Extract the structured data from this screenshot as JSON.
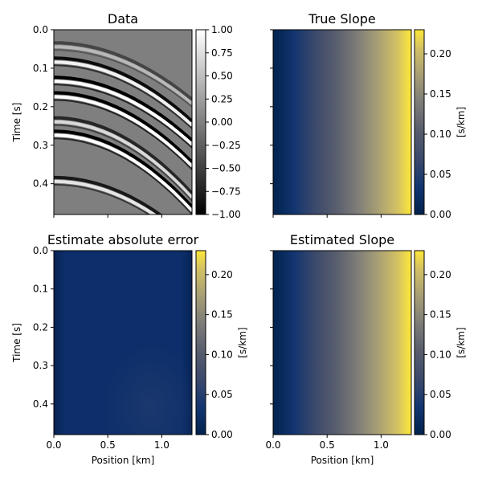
{
  "chart_data": [
    {
      "type": "heatmap",
      "title": "Data",
      "xlabel": "",
      "ylabel": "Time [s]",
      "xlim": [
        0.0,
        1.28
      ],
      "ylim": [
        0.0,
        0.48
      ],
      "y_inverted": true,
      "xticks": [
        0.0,
        0.5,
        1.0
      ],
      "yticks": [
        0.0,
        0.1,
        0.2,
        0.3,
        0.4
      ],
      "ytick_labels": [
        "0.0",
        "0.1",
        "0.2",
        "0.3",
        "0.4"
      ],
      "colormap": "gray",
      "colorbar": {
        "label": "",
        "vmin": -1.0,
        "vmax": 1.0,
        "ticks": [
          1.0,
          0.75,
          0.5,
          0.25,
          0.0,
          -0.25,
          -0.5,
          -0.75,
          -1.0
        ],
        "tick_labels": [
          "1.00",
          "0.75",
          "0.50",
          "0.25",
          "0.00",
          "−0.25",
          "−0.50",
          "−0.75",
          "−1.00"
        ]
      },
      "events": [
        {
          "t0": 0.04,
          "curvature": 0.09,
          "amplitude": 0.45
        },
        {
          "t0": 0.08,
          "curvature": 0.1,
          "amplitude": 0.9
        },
        {
          "t0": 0.13,
          "curvature": 0.1,
          "amplitude": 1.0
        },
        {
          "t0": 0.17,
          "curvature": 0.11,
          "amplitude": 1.0
        },
        {
          "t0": 0.235,
          "curvature": 0.12,
          "amplitude": 0.7
        },
        {
          "t0": 0.27,
          "curvature": 0.12,
          "amplitude": 1.0
        },
        {
          "t0": 0.39,
          "curvature": 0.1,
          "amplitude": 0.8
        }
      ]
    },
    {
      "type": "heatmap",
      "title": "True Slope",
      "xlabel": "",
      "ylabel": "",
      "xlim": [
        0.0,
        1.28
      ],
      "ylim": [
        0.0,
        0.48
      ],
      "y_inverted": true,
      "colormap": "cividis",
      "field": "linear_in_position",
      "value_range": [
        0.0,
        0.23
      ],
      "colorbar": {
        "label": "[s/km]",
        "vmin": 0.0,
        "vmax": 0.23,
        "ticks": [
          0.2,
          0.15,
          0.1,
          0.05,
          0.0
        ],
        "tick_labels": [
          "0.20",
          "0.15",
          "0.10",
          "0.05",
          "0.00"
        ]
      }
    },
    {
      "type": "heatmap",
      "title": "Estimate absolute error",
      "xlabel": "Position [km]",
      "ylabel": "Time [s]",
      "xlim": [
        0.0,
        1.28
      ],
      "ylim": [
        0.0,
        0.48
      ],
      "y_inverted": true,
      "xticks": [
        0.0,
        0.5,
        1.0
      ],
      "xtick_labels": [
        "0.0",
        "0.5",
        "1.0"
      ],
      "yticks": [
        0.0,
        0.1,
        0.2,
        0.3,
        0.4
      ],
      "ytick_labels": [
        "0.0",
        "0.1",
        "0.2",
        "0.3",
        "0.4"
      ],
      "colormap": "cividis",
      "field": "near_zero_error",
      "colorbar": {
        "label": "[s/km]",
        "vmin": 0.0,
        "vmax": 0.23,
        "ticks": [
          0.2,
          0.15,
          0.1,
          0.05,
          0.0
        ],
        "tick_labels": [
          "0.20",
          "0.15",
          "0.10",
          "0.05",
          "0.00"
        ]
      }
    },
    {
      "type": "heatmap",
      "title": "Estimated Slope",
      "xlabel": "Position [km]",
      "ylabel": "",
      "xlim": [
        0.0,
        1.28
      ],
      "ylim": [
        0.0,
        0.48
      ],
      "y_inverted": true,
      "xticks": [
        0.0,
        0.5,
        1.0
      ],
      "xtick_labels": [
        "0.0",
        "0.5",
        "1.0"
      ],
      "colormap": "cividis",
      "field": "linear_in_position",
      "value_range": [
        0.0,
        0.23
      ],
      "colorbar": {
        "label": "[s/km]",
        "vmin": 0.0,
        "vmax": 0.23,
        "ticks": [
          0.2,
          0.15,
          0.1,
          0.05,
          0.0
        ],
        "tick_labels": [
          "0.20",
          "0.15",
          "0.10",
          "0.05",
          "0.00"
        ]
      }
    }
  ]
}
